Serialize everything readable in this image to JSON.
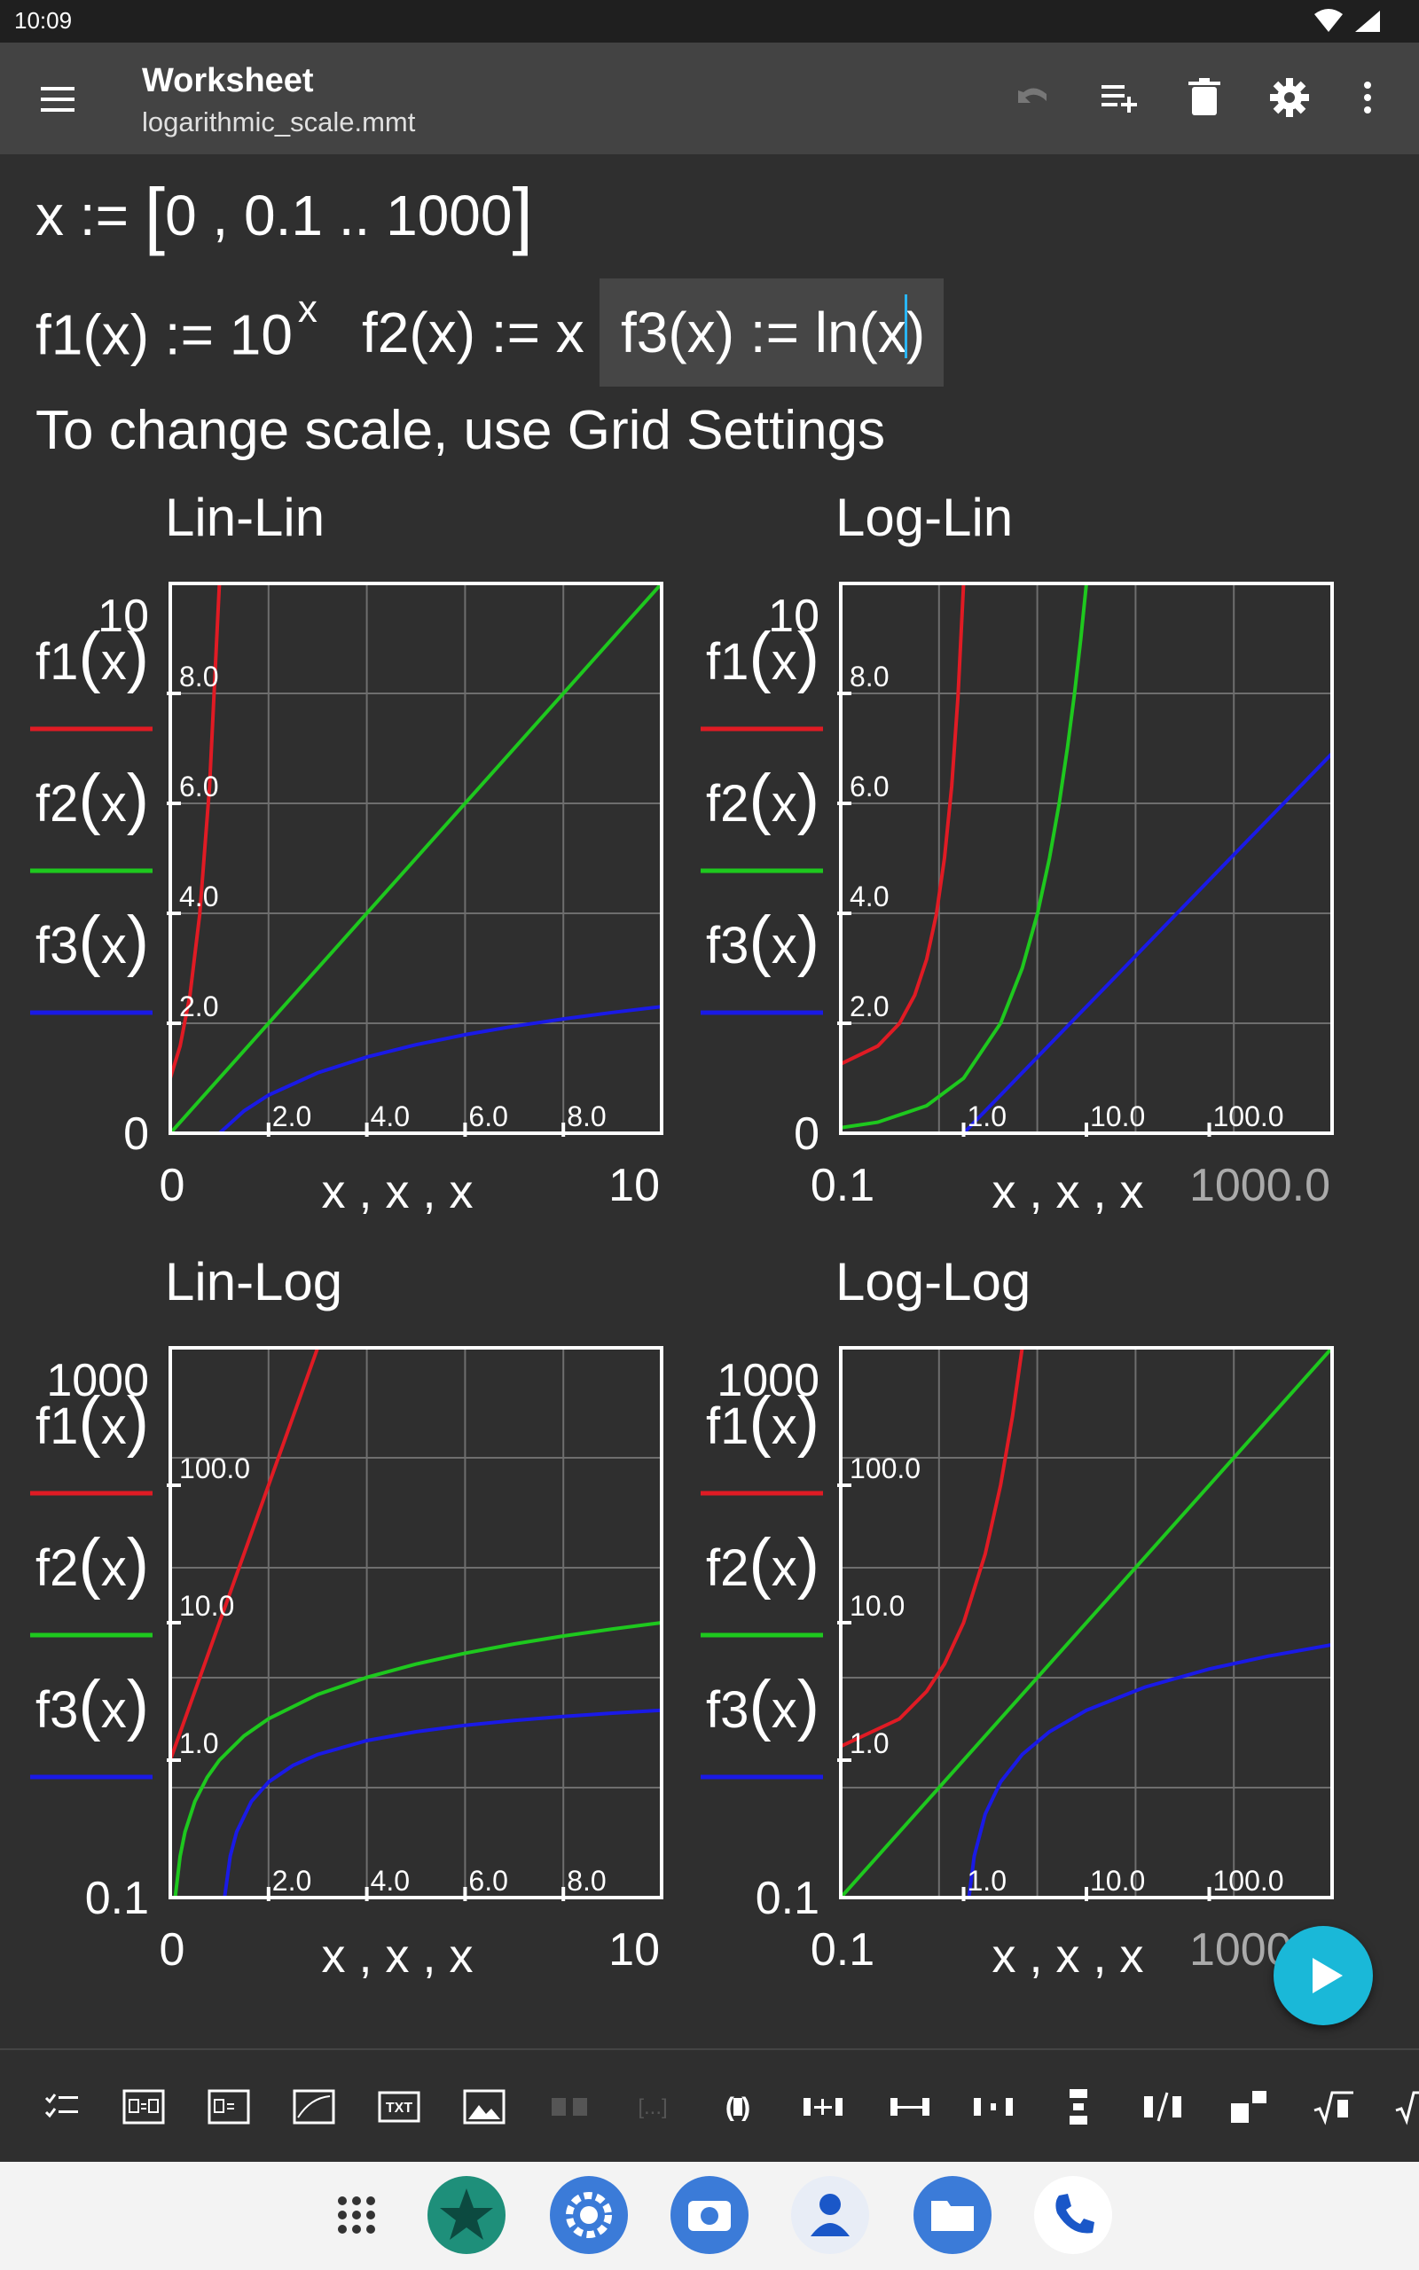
{
  "status": {
    "time": "10:09"
  },
  "appbar": {
    "title": "Worksheet",
    "subtitle": "logarithmic_scale.mmt"
  },
  "toolbar_icons": [
    "menu-icon",
    "undo-icon",
    "add-list-icon",
    "delete-icon",
    "settings-icon",
    "more-vert-icon"
  ],
  "worksheet": {
    "line1": {
      "var": "x",
      "assign": " := ",
      "lbr": "[",
      "range": "0 , 0.1 .. 1000",
      "rbr": "]"
    },
    "f1": {
      "lhs": "f1(x) := 10",
      "exp": "x"
    },
    "f2": {
      "text": "f2(x) := x"
    },
    "f3": {
      "lhs": "f3(x) := ln",
      "lp": "(",
      "arg": "x",
      "rp": ")"
    },
    "note": "To change scale, use Grid Settings"
  },
  "legend_labels": [
    "f1",
    "f2",
    "f3"
  ],
  "legend_arg": "x",
  "colors": {
    "f1": "#e01b24",
    "f2": "#1ec81e",
    "f3": "#1a1ae6",
    "axis_box": "#ffffff",
    "grid": "#6e6e6e",
    "bg": "#2f2f2f"
  },
  "chart_data": [
    {
      "type": "line",
      "title": "Lin-Lin",
      "x_scale": "linear",
      "y_scale": "linear",
      "xlim": [
        0,
        10
      ],
      "ylim": [
        0,
        10
      ],
      "x_range_labels": [
        "0",
        "10"
      ],
      "y_range_labels": [
        "10",
        "0"
      ],
      "xlabel": "x , x , x",
      "x_ticks": [
        2,
        4,
        6,
        8
      ],
      "x_tick_labels": [
        "2.0",
        "4.0",
        "6.0",
        "8.0"
      ],
      "y_ticks": [
        2,
        4,
        6,
        8
      ],
      "y_tick_labels": [
        "2.0",
        "4.0",
        "6.0",
        "8.0"
      ],
      "series": [
        {
          "name": "f1(x)",
          "x": [
            0,
            0.2,
            0.4,
            0.6,
            0.8,
            1
          ],
          "y": [
            1,
            1.585,
            2.512,
            3.981,
            6.31,
            10
          ]
        },
        {
          "name": "f2(x)",
          "x": [
            0,
            10
          ],
          "y": [
            0,
            10
          ]
        },
        {
          "name": "f3(x)",
          "x": [
            1,
            1.5,
            2,
            3,
            4,
            5,
            6,
            7,
            8,
            9,
            10
          ],
          "y": [
            0,
            0.405,
            0.693,
            1.099,
            1.386,
            1.609,
            1.792,
            1.946,
            2.079,
            2.197,
            2.303
          ]
        }
      ]
    },
    {
      "type": "line",
      "title": "Log-Lin",
      "x_scale": "log",
      "y_scale": "linear",
      "xlim": [
        0.1,
        1000
      ],
      "ylim": [
        0,
        10
      ],
      "x_range_labels": [
        "0.1",
        "1000.0"
      ],
      "y_range_labels": [
        "10",
        "0"
      ],
      "xlabel": "x , x , x",
      "x_ticks": [
        1,
        10,
        100
      ],
      "x_tick_labels": [
        "1.0",
        "10.0",
        "100.0"
      ],
      "y_ticks": [
        2,
        4,
        6,
        8
      ],
      "y_tick_labels": [
        "2.0",
        "4.0",
        "6.0",
        "8.0"
      ],
      "series": [
        {
          "name": "f1(x)",
          "x": [
            0.1,
            0.2,
            0.3,
            0.4,
            0.5,
            0.6,
            0.7,
            0.8,
            0.9,
            1
          ],
          "y": [
            1.259,
            1.585,
            1.995,
            2.512,
            3.162,
            3.981,
            5.012,
            6.31,
            7.943,
            10
          ]
        },
        {
          "name": "f2(x)",
          "x": [
            0.1,
            0.2,
            0.5,
            1,
            2,
            3,
            4,
            5,
            6,
            7,
            8,
            9,
            10
          ],
          "y": [
            0.1,
            0.2,
            0.5,
            1,
            2,
            3,
            4,
            5,
            6,
            7,
            8,
            9,
            10
          ]
        },
        {
          "name": "f3(x)",
          "x": [
            1,
            1000
          ],
          "y": [
            0,
            6.908
          ]
        }
      ]
    },
    {
      "type": "line",
      "title": "Lin-Log",
      "x_scale": "linear",
      "y_scale": "log",
      "xlim": [
        0,
        10
      ],
      "ylim": [
        0.1,
        1000
      ],
      "x_range_labels": [
        "0",
        "10"
      ],
      "y_range_labels": [
        "1000",
        "0.1"
      ],
      "xlabel": "x , x , x",
      "x_ticks": [
        2,
        4,
        6,
        8
      ],
      "x_tick_labels": [
        "2.0",
        "4.0",
        "6.0",
        "8.0"
      ],
      "y_ticks": [
        1,
        10,
        100
      ],
      "y_tick_labels": [
        "1.0",
        "10.0",
        "100.0"
      ],
      "series": [
        {
          "name": "f1(x)",
          "x": [
            0,
            3
          ],
          "y": [
            1,
            1000
          ]
        },
        {
          "name": "f2(x)",
          "x": [
            0.1,
            0.2,
            0.3,
            0.5,
            0.75,
            1,
            1.5,
            2,
            3,
            4,
            5,
            6,
            7,
            8,
            9,
            10
          ],
          "y": [
            0.1,
            0.2,
            0.3,
            0.5,
            0.75,
            1,
            1.5,
            2,
            3,
            4,
            5,
            6,
            7,
            8,
            9,
            10
          ]
        },
        {
          "name": "f3(x)",
          "x": [
            1.105,
            1.22,
            1.35,
            1.65,
            2,
            2.5,
            3,
            4,
            5,
            6,
            7,
            8,
            9,
            10
          ],
          "y": [
            0.1,
            0.2,
            0.3,
            0.5,
            0.693,
            0.916,
            1.099,
            1.386,
            1.609,
            1.792,
            1.946,
            2.079,
            2.197,
            2.303
          ]
        }
      ]
    },
    {
      "type": "line",
      "title": "Log-Log",
      "x_scale": "log",
      "y_scale": "log",
      "xlim": [
        0.1,
        1000
      ],
      "ylim": [
        0.1,
        1000
      ],
      "x_range_labels": [
        "0.1",
        "1000.0"
      ],
      "y_range_labels": [
        "1000",
        "0.1"
      ],
      "xlabel": "x , x , x",
      "x_ticks": [
        1,
        10,
        100
      ],
      "x_tick_labels": [
        "1.0",
        "10.0",
        "100.0"
      ],
      "y_ticks": [
        1,
        10,
        100
      ],
      "y_tick_labels": [
        "1.0",
        "10.0",
        "100.0"
      ],
      "series": [
        {
          "name": "f1(x)",
          "x": [
            0.1,
            0.3,
            0.5,
            0.7,
            1,
            1.5,
            2,
            2.5,
            3
          ],
          "y": [
            1.259,
            1.995,
            3.162,
            5.012,
            10,
            31.62,
            100,
            316.2,
            1000
          ]
        },
        {
          "name": "f2(x)",
          "x": [
            0.1,
            1000
          ],
          "y": [
            0.1,
            1000
          ]
        },
        {
          "name": "f3(x)",
          "x": [
            1.105,
            1.22,
            1.5,
            2,
            3,
            5,
            10,
            30,
            100,
            300,
            1000
          ],
          "y": [
            0.1,
            0.2,
            0.405,
            0.693,
            1.099,
            1.609,
            2.303,
            3.401,
            4.605,
            5.704,
            6.908
          ]
        }
      ]
    }
  ],
  "bottom_icons": [
    "checklist-icon",
    "equation-block-icon",
    "equation-def-icon",
    "plot-icon",
    "text-icon",
    "image-icon",
    "pair-icon",
    "range-icon",
    "parentheses-icon",
    "insert-column-icon",
    "insert-row-icon",
    "split-columns-icon",
    "stack-rows-icon",
    "fraction-icon",
    "power-icon",
    "sqrt-icon",
    "nth-root-icon"
  ],
  "bottom_labels": {
    "text": "TXT",
    "range": "[...]",
    "paren": "( )"
  },
  "dock_icons": [
    "apps-icon",
    "app-star-icon",
    "settings-app-icon",
    "camera-app-icon",
    "contacts-app-icon",
    "files-app-icon",
    "phone-app-icon"
  ]
}
